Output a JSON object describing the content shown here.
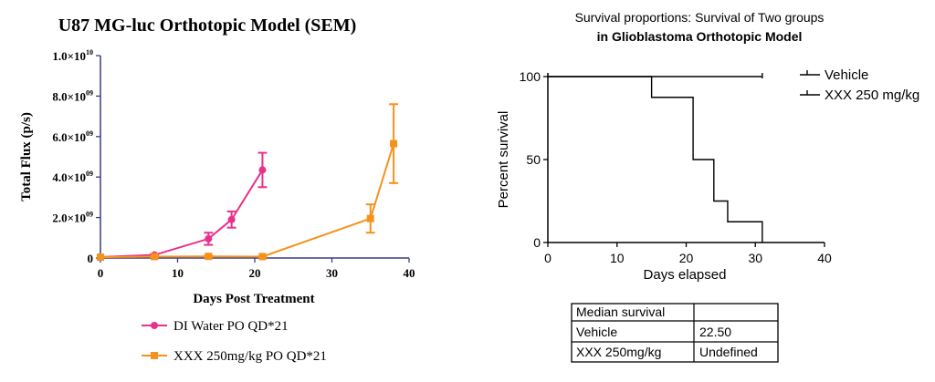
{
  "left_chart_data": {
    "type": "line",
    "title": "U87 MG-luc Orthotopic Model (SEM)",
    "xlabel": "Days Post Treatment",
    "ylabel": "Total Flux (p/s)",
    "xlim": [
      0,
      40
    ],
    "ylim": [
      0,
      10000000000
    ],
    "x_ticks": [
      0,
      10,
      20,
      30,
      40
    ],
    "y_ticks": [
      {
        "value": 0,
        "label": "0",
        "exp": ""
      },
      {
        "value": 2000000000,
        "label": "2.0×10",
        "exp": "09"
      },
      {
        "value": 4000000000,
        "label": "4.0×10",
        "exp": "09"
      },
      {
        "value": 6000000000,
        "label": "6.0×10",
        "exp": "09"
      },
      {
        "value": 8000000000,
        "label": "8.0×10",
        "exp": "09"
      },
      {
        "value": 10000000000,
        "label": "1.0×10",
        "exp": "10"
      }
    ],
    "legend_position": "bottom",
    "series": [
      {
        "name": "DI Water PO QD*21",
        "color": "#e8308c",
        "marker": "circle",
        "x": [
          0,
          7,
          14,
          17,
          21
        ],
        "y": [
          50000000,
          150000000,
          950000000,
          1900000000,
          4350000000
        ],
        "err": [
          0,
          50000000,
          300000000,
          400000000,
          850000000
        ]
      },
      {
        "name": "XXX 250mg/kg PO QD*21",
        "color": "#f5921e",
        "marker": "square",
        "x": [
          0,
          7,
          14,
          21,
          35,
          38
        ],
        "y": [
          40000000,
          70000000,
          80000000,
          70000000,
          1950000000,
          5650000000
        ],
        "err": [
          0,
          20000000,
          30000000,
          20000000,
          700000000,
          1950000000
        ]
      }
    ]
  },
  "right_chart_data": {
    "type": "line",
    "title_line1": "Survival proportions: Survival of Two groups",
    "title_line2": "in Glioblastoma Orthotopic Model",
    "xlabel": "Days elapsed",
    "ylabel": "Percent survival",
    "xlim": [
      0,
      40
    ],
    "ylim": [
      0,
      100
    ],
    "x_ticks": [
      0,
      10,
      20,
      30,
      40
    ],
    "y_ticks": [
      0,
      50,
      100
    ],
    "legend_position": "top-right",
    "series": [
      {
        "name": "Vehicle",
        "color": "#000000",
        "steps": [
          [
            0,
            100
          ],
          [
            15,
            87.5
          ],
          [
            21,
            50
          ],
          [
            24,
            25
          ],
          [
            26,
            12.5
          ],
          [
            31,
            0
          ]
        ]
      },
      {
        "name": "XXX 250 mg/kg",
        "color": "#000000",
        "steps": [
          [
            0,
            100
          ],
          [
            31,
            100
          ]
        ]
      }
    ]
  },
  "survival_table": {
    "header": "Median survival",
    "rows": [
      {
        "group": "Vehicle",
        "value": "22.50"
      },
      {
        "group": "XXX 250mg/kg",
        "value": "Undefined"
      }
    ]
  }
}
